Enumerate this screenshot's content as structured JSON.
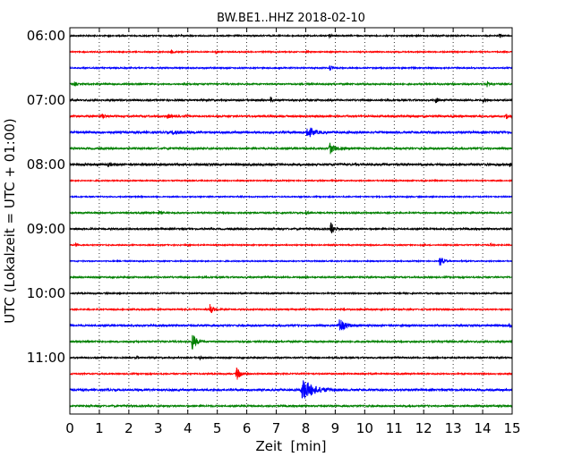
{
  "chart_data": {
    "type": "line",
    "title": "BW.BE1..HHZ 2018-02-10",
    "xlabel": "Zeit  [min]",
    "ylabel": "UTC (Lokalzeit = UTC + 01:00)",
    "xlim": [
      0,
      15
    ],
    "x_ticks": [
      "0",
      "1",
      "2",
      "3",
      "4",
      "5",
      "6",
      "7",
      "8",
      "9",
      "10",
      "11",
      "12",
      "13",
      "14",
      "15"
    ],
    "x_grid": "dotted vertical lines at every minute",
    "y_tick_labels": [
      "06:00",
      "07:00",
      "08:00",
      "09:00",
      "10:00",
      "11:00"
    ],
    "line_interval_minutes": 15,
    "color_cycle": [
      "#000000",
      "#ff0000",
      "#0000ff",
      "#008000"
    ],
    "traces": [
      {
        "time": "06:00",
        "noise": 0.7,
        "events": [
          {
            "x": 8.8,
            "amp": 2.0,
            "dur": 0.08
          },
          {
            "x": 14.55,
            "amp": 3.0,
            "dur": 0.05
          }
        ]
      },
      {
        "time": "06:15",
        "noise": 0.6,
        "events": [
          {
            "x": 3.45,
            "amp": 2.5,
            "dur": 0.05
          },
          {
            "x": 4.95,
            "amp": 2.5,
            "dur": 0.05
          }
        ]
      },
      {
        "time": "06:30",
        "noise": 0.7,
        "events": [
          {
            "x": 8.8,
            "amp": 4.5,
            "dur": 0.06
          }
        ]
      },
      {
        "time": "06:45",
        "noise": 0.8,
        "events": [
          {
            "x": 0.15,
            "amp": 3.0,
            "dur": 0.05
          },
          {
            "x": 14.15,
            "amp": 3.5,
            "dur": 0.05
          }
        ]
      },
      {
        "time": "07:00",
        "noise": 0.9,
        "events": [
          {
            "x": 6.8,
            "amp": 4.0,
            "dur": 0.05
          },
          {
            "x": 12.4,
            "amp": 3.0,
            "dur": 0.1
          },
          {
            "x": 14.0,
            "amp": 2.5,
            "dur": 0.08
          }
        ]
      },
      {
        "time": "07:15",
        "noise": 1.0,
        "events": [
          {
            "x": 1.1,
            "amp": 2.5,
            "dur": 0.1
          },
          {
            "x": 3.3,
            "amp": 2.5,
            "dur": 0.1
          },
          {
            "x": 14.8,
            "amp": 2.5,
            "dur": 0.1
          }
        ]
      },
      {
        "time": "07:30",
        "noise": 1.2,
        "events": [
          {
            "x": 8.05,
            "amp": 7.0,
            "dur": 0.18
          },
          {
            "x": 3.5,
            "amp": 2.0,
            "dur": 0.2
          }
        ]
      },
      {
        "time": "07:45",
        "noise": 1.0,
        "events": [
          {
            "x": 8.8,
            "amp": 7.0,
            "dur": 0.15
          }
        ]
      },
      {
        "time": "08:00",
        "noise": 1.2,
        "events": [
          {
            "x": 1.3,
            "amp": 2.0,
            "dur": 0.1
          },
          {
            "x": 14.9,
            "amp": 3.0,
            "dur": 0.05
          }
        ]
      },
      {
        "time": "08:15",
        "noise": 0.6,
        "events": []
      },
      {
        "time": "08:30",
        "noise": 0.6,
        "events": []
      },
      {
        "time": "08:45",
        "noise": 0.8,
        "events": [
          {
            "x": 3.0,
            "amp": 2.0,
            "dur": 0.1
          },
          {
            "x": 8.0,
            "amp": 2.0,
            "dur": 0.1
          }
        ]
      },
      {
        "time": "09:00",
        "noise": 0.9,
        "events": [
          {
            "x": 8.85,
            "amp": 7.5,
            "dur": 0.12
          }
        ]
      },
      {
        "time": "09:15",
        "noise": 0.6,
        "events": [
          {
            "x": 0.2,
            "amp": 2.5,
            "dur": 0.05
          },
          {
            "x": 14.25,
            "amp": 2.5,
            "dur": 0.05
          }
        ]
      },
      {
        "time": "09:30",
        "noise": 0.6,
        "events": [
          {
            "x": 12.55,
            "amp": 6.0,
            "dur": 0.12
          }
        ]
      },
      {
        "time": "09:45",
        "noise": 0.8,
        "events": []
      },
      {
        "time": "10:00",
        "noise": 0.7,
        "events": []
      },
      {
        "time": "10:15",
        "noise": 0.7,
        "events": [
          {
            "x": 4.75,
            "amp": 6.0,
            "dur": 0.1
          }
        ]
      },
      {
        "time": "10:30",
        "noise": 1.0,
        "events": [
          {
            "x": 9.15,
            "amp": 9.0,
            "dur": 0.15
          },
          {
            "x": 14.9,
            "amp": 2.0,
            "dur": 0.1
          }
        ]
      },
      {
        "time": "10:45",
        "noise": 0.9,
        "events": [
          {
            "x": 4.15,
            "amp": 10.0,
            "dur": 0.12
          }
        ]
      },
      {
        "time": "11:00",
        "noise": 0.8,
        "events": [
          {
            "x": 2.25,
            "amp": 2.5,
            "dur": 0.05
          },
          {
            "x": 4.4,
            "amp": 2.0,
            "dur": 0.05
          }
        ]
      },
      {
        "time": "11:15",
        "noise": 0.7,
        "events": [
          {
            "x": 5.65,
            "amp": 8.0,
            "dur": 0.12
          }
        ]
      },
      {
        "time": "11:30",
        "noise": 1.1,
        "events": [
          {
            "x": 7.9,
            "amp": 12.0,
            "dur": 0.35
          }
        ]
      },
      {
        "time": "11:45",
        "noise": 0.9,
        "events": []
      }
    ]
  }
}
